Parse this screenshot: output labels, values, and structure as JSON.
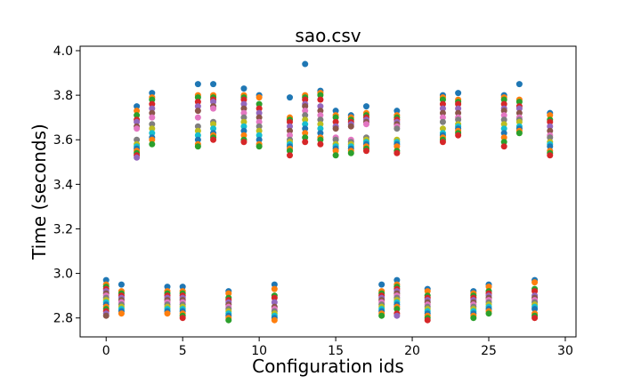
{
  "chart_data": {
    "type": "scatter",
    "title": "sao.csv",
    "xlabel": "Configuration ids",
    "ylabel": "Time (seconds)",
    "xlim": [
      -1.7,
      30.7
    ],
    "ylim": [
      2.715,
      4.02
    ],
    "xticks": [
      0,
      5,
      10,
      15,
      20,
      25,
      30
    ],
    "yticks": [
      2.8,
      3.0,
      3.2,
      3.4,
      3.6,
      3.8,
      4.0
    ],
    "xtick_labels": [
      "0",
      "5",
      "10",
      "15",
      "20",
      "25",
      "30"
    ],
    "ytick_labels": [
      "2.8",
      "3.0",
      "3.2",
      "3.4",
      "3.6",
      "3.8",
      "4.0"
    ],
    "grid": false,
    "legend": "none",
    "palette": [
      "#1f77b4",
      "#ff7f0e",
      "#2ca02c",
      "#d62728",
      "#9467bd",
      "#8c564b",
      "#e377c2",
      "#7f7f7f",
      "#bcbd22",
      "#17becf"
    ],
    "groups": [
      {
        "x": 0,
        "y": [
          2.97,
          2.95,
          2.94,
          2.93,
          2.92,
          2.91,
          2.9,
          2.89,
          2.88,
          2.87,
          2.86,
          2.85,
          2.84,
          2.83,
          2.82,
          2.81
        ]
      },
      {
        "x": 1,
        "y": [
          2.95,
          2.92,
          2.91,
          2.9,
          2.89,
          2.88,
          2.87,
          2.86,
          2.85,
          2.84,
          2.83,
          2.82
        ]
      },
      {
        "x": 2,
        "y": [
          3.75,
          3.73,
          3.71,
          3.69,
          3.68,
          3.66,
          3.65,
          3.6,
          3.58,
          3.57,
          3.56,
          3.55,
          3.54,
          3.53,
          3.52
        ]
      },
      {
        "x": 3,
        "y": [
          3.81,
          3.79,
          3.78,
          3.76,
          3.74,
          3.72,
          3.7,
          3.67,
          3.65,
          3.63,
          3.61,
          3.6,
          3.58
        ]
      },
      {
        "x": 4,
        "y": [
          2.94,
          2.92,
          2.91,
          2.9,
          2.89,
          2.88,
          2.87,
          2.86,
          2.85,
          2.84,
          2.83,
          2.82
        ]
      },
      {
        "x": 5,
        "y": [
          2.94,
          2.92,
          2.91,
          2.9,
          2.89,
          2.88,
          2.87,
          2.86,
          2.85,
          2.84,
          2.83,
          2.82,
          2.81,
          2.8
        ]
      },
      {
        "x": 6,
        "y": [
          3.85,
          3.8,
          3.79,
          3.77,
          3.75,
          3.73,
          3.7,
          3.66,
          3.64,
          3.62,
          3.6,
          3.58,
          3.57
        ]
      },
      {
        "x": 7,
        "y": [
          3.85,
          3.8,
          3.79,
          3.78,
          3.77,
          3.75,
          3.74,
          3.68,
          3.67,
          3.65,
          3.63,
          3.62,
          3.61,
          3.6
        ]
      },
      {
        "x": 8,
        "y": [
          2.92,
          2.91,
          2.89,
          2.88,
          2.87,
          2.86,
          2.85,
          2.84,
          2.83,
          2.82,
          2.81,
          2.8,
          2.79
        ]
      },
      {
        "x": 9,
        "y": [
          3.83,
          3.8,
          3.79,
          3.78,
          3.76,
          3.74,
          3.72,
          3.7,
          3.68,
          3.66,
          3.64,
          3.62,
          3.6,
          3.59
        ]
      },
      {
        "x": 10,
        "y": [
          3.8,
          3.79,
          3.76,
          3.74,
          3.72,
          3.7,
          3.68,
          3.66,
          3.64,
          3.62,
          3.6,
          3.58,
          3.57
        ]
      },
      {
        "x": 11,
        "y": [
          2.95,
          2.93,
          2.9,
          2.89,
          2.87,
          2.85,
          2.84,
          2.83,
          2.82,
          2.81,
          2.8,
          2.79
        ]
      },
      {
        "x": 12,
        "y": [
          3.79,
          3.7,
          3.69,
          3.68,
          3.66,
          3.64,
          3.62,
          3.6,
          3.59,
          3.58,
          3.57,
          3.56,
          3.55,
          3.53
        ]
      },
      {
        "x": 13,
        "y": [
          3.94,
          3.8,
          3.79,
          3.78,
          3.76,
          3.75,
          3.73,
          3.71,
          3.69,
          3.67,
          3.65,
          3.63,
          3.61,
          3.59
        ]
      },
      {
        "x": 14,
        "y": [
          3.82,
          3.81,
          3.8,
          3.78,
          3.75,
          3.73,
          3.71,
          3.69,
          3.67,
          3.65,
          3.63,
          3.61,
          3.6,
          3.58
        ]
      },
      {
        "x": 15,
        "y": [
          3.73,
          3.71,
          3.7,
          3.68,
          3.66,
          3.65,
          3.61,
          3.6,
          3.58,
          3.57,
          3.56,
          3.55,
          3.53
        ]
      },
      {
        "x": 16,
        "y": [
          3.71,
          3.7,
          3.69,
          3.68,
          3.67,
          3.66,
          3.6,
          3.59,
          3.58,
          3.57,
          3.56,
          3.55,
          3.54
        ]
      },
      {
        "x": 17,
        "y": [
          3.75,
          3.72,
          3.71,
          3.7,
          3.69,
          3.68,
          3.67,
          3.61,
          3.6,
          3.59,
          3.58,
          3.57,
          3.56,
          3.55
        ]
      },
      {
        "x": 18,
        "y": [
          2.95,
          2.92,
          2.91,
          2.9,
          2.89,
          2.88,
          2.87,
          2.86,
          2.85,
          2.84,
          2.83,
          2.82,
          2.81
        ]
      },
      {
        "x": 19,
        "y": [
          3.73,
          3.71,
          3.7,
          3.69,
          3.68,
          3.67,
          3.66,
          3.65,
          3.6,
          3.59,
          3.58,
          3.57,
          3.55,
          3.54
        ]
      },
      {
        "x": 19,
        "y": [
          2.97,
          2.95,
          2.94,
          2.93,
          2.92,
          2.91,
          2.9,
          2.89,
          2.88,
          2.87,
          2.86,
          2.85,
          2.84,
          2.82,
          2.81
        ]
      },
      {
        "x": 21,
        "y": [
          2.93,
          2.92,
          2.9,
          2.89,
          2.88,
          2.87,
          2.86,
          2.85,
          2.84,
          2.83,
          2.82,
          2.81,
          2.8,
          2.79
        ]
      },
      {
        "x": 22,
        "y": [
          3.8,
          3.79,
          3.78,
          3.76,
          3.74,
          3.72,
          3.7,
          3.68,
          3.65,
          3.63,
          3.62,
          3.61,
          3.6,
          3.59
        ]
      },
      {
        "x": 23,
        "y": [
          3.81,
          3.78,
          3.77,
          3.76,
          3.74,
          3.72,
          3.7,
          3.69,
          3.67,
          3.66,
          3.65,
          3.64,
          3.63,
          3.62
        ]
      },
      {
        "x": 24,
        "y": [
          2.92,
          2.91,
          2.9,
          2.89,
          2.88,
          2.87,
          2.86,
          2.85,
          2.84,
          2.83,
          2.82,
          2.81,
          2.8
        ]
      },
      {
        "x": 25,
        "y": [
          2.95,
          2.94,
          2.92,
          2.91,
          2.9,
          2.89,
          2.88,
          2.87,
          2.86,
          2.85,
          2.84,
          2.83,
          2.82
        ]
      },
      {
        "x": 26,
        "y": [
          3.8,
          3.79,
          3.78,
          3.76,
          3.74,
          3.73,
          3.71,
          3.69,
          3.67,
          3.65,
          3.63,
          3.61,
          3.59,
          3.57
        ]
      },
      {
        "x": 27,
        "y": [
          3.85,
          3.78,
          3.77,
          3.75,
          3.74,
          3.72,
          3.7,
          3.69,
          3.68,
          3.66,
          3.65,
          3.64,
          3.63
        ]
      },
      {
        "x": 28,
        "y": [
          2.97,
          2.96,
          2.93,
          2.92,
          2.9,
          2.89,
          2.88,
          2.87,
          2.86,
          2.85,
          2.84,
          2.82,
          2.81,
          2.8
        ]
      },
      {
        "x": 29,
        "y": [
          3.72,
          3.71,
          3.69,
          3.68,
          3.66,
          3.64,
          3.62,
          3.61,
          3.59,
          3.58,
          3.57,
          3.55,
          3.54,
          3.53
        ]
      }
    ]
  }
}
